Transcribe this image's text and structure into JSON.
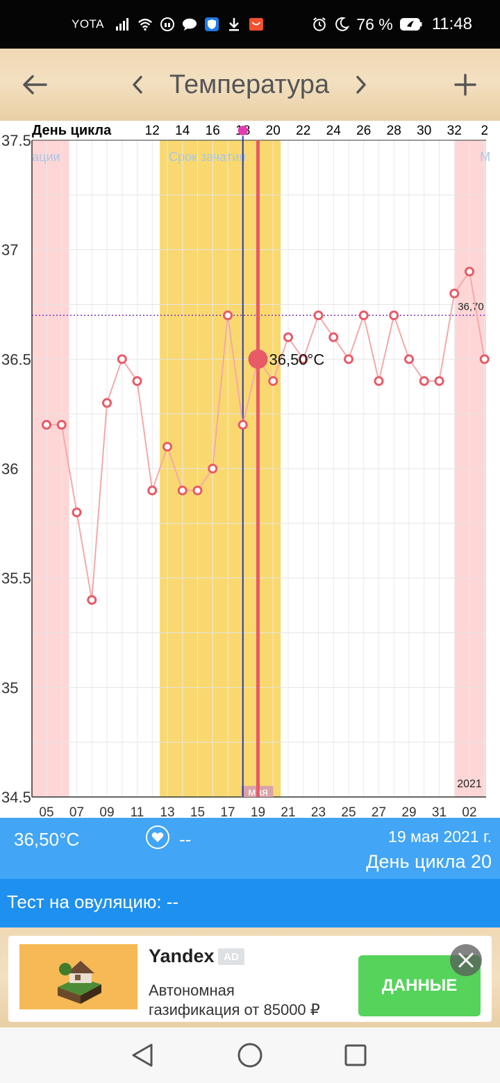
{
  "status_bar": {
    "carrier": "YOTA",
    "battery": "76 %",
    "time": "11:48",
    "icons": [
      "signal-icon",
      "wifi-icon",
      "headset-icon",
      "chat-icon",
      "shield-icon",
      "download-icon",
      "app-icon",
      "alarm-icon",
      "moon-icon",
      "battery-icon"
    ]
  },
  "toolbar": {
    "title": "Температура",
    "back_icon": "arrow-left-icon",
    "prev_icon": "chevron-left-icon",
    "next_icon": "chevron-right-icon",
    "add_icon": "plus-icon"
  },
  "chart_data": {
    "type": "line",
    "top_axis_label": "День цикла",
    "top_axis_ticks": [
      "12",
      "14",
      "16",
      "18",
      "20",
      "22",
      "24",
      "26",
      "28",
      "30",
      "32",
      "2"
    ],
    "x_tick_labels": [
      "05",
      "07",
      "09",
      "11",
      "13",
      "15",
      "17",
      "19",
      "21",
      "23",
      "25",
      "27",
      "29",
      "31",
      "02"
    ],
    "x_month_label": "мая",
    "x_year_label": "2021",
    "ylim": [
      34.5,
      37.5
    ],
    "y_ticks": [
      34.5,
      35,
      35.5,
      36,
      36.5,
      37,
      37.5
    ],
    "y_tick_labels": [
      "34.5",
      "35",
      "35.5",
      "36",
      "36.5",
      "37",
      "37.5"
    ],
    "series": [
      {
        "values": [
          36.2,
          36.2,
          35.8,
          35.4,
          36.3,
          36.5,
          36.4,
          35.9,
          36.1,
          35.9,
          35.9,
          36.0,
          36.7,
          36.2,
          36.5,
          36.4,
          36.6,
          36.5,
          36.7,
          36.6,
          36.5,
          36.7,
          36.4,
          36.7,
          36.5,
          36.4,
          36.4,
          36.8,
          36.9,
          36.5
        ],
        "color": "#e85a66"
      }
    ],
    "selected_point": {
      "index": 14,
      "value": 36.5,
      "label": "36,50°C"
    },
    "coverline": {
      "value": 36.7,
      "label": "36,70",
      "color": "#7b2cc4"
    },
    "conception_window": {
      "label": "Срок зачатия",
      "start_index": 8,
      "end_index": 15,
      "color": "#f9d96f"
    },
    "period_bands": [
      {
        "label": "ации",
        "start_index": 0,
        "end_index": 1,
        "color": "#ffd6d6"
      },
      {
        "label": "М",
        "start_index": 28,
        "end_index": 29,
        "color": "#ffd6d6"
      }
    ],
    "ovulation_marker_index": 13,
    "colors": {
      "line": "#f4a9a9",
      "marker": "#e85a66",
      "today_line": "#e85a66",
      "ovulation_line": "#2a36a8",
      "ovulation_dot": "#e23bb4"
    }
  },
  "summary": {
    "temperature": "36,50°C",
    "heart_value": "--",
    "date": "19 мая 2021 г.",
    "cycle_day": "День цикла 20"
  },
  "ovulation_test": {
    "text": "Тест на овуляцию: --"
  },
  "ad": {
    "title": "Yandex",
    "badge": "AD",
    "line1": "Автономная",
    "line2": "газификация от 85000 ₽",
    "button": "ДАННЫЕ",
    "close_icon": "close-icon"
  },
  "navbar": {
    "icons": [
      "back-triangle-icon",
      "home-circle-icon",
      "recent-square-icon"
    ]
  }
}
